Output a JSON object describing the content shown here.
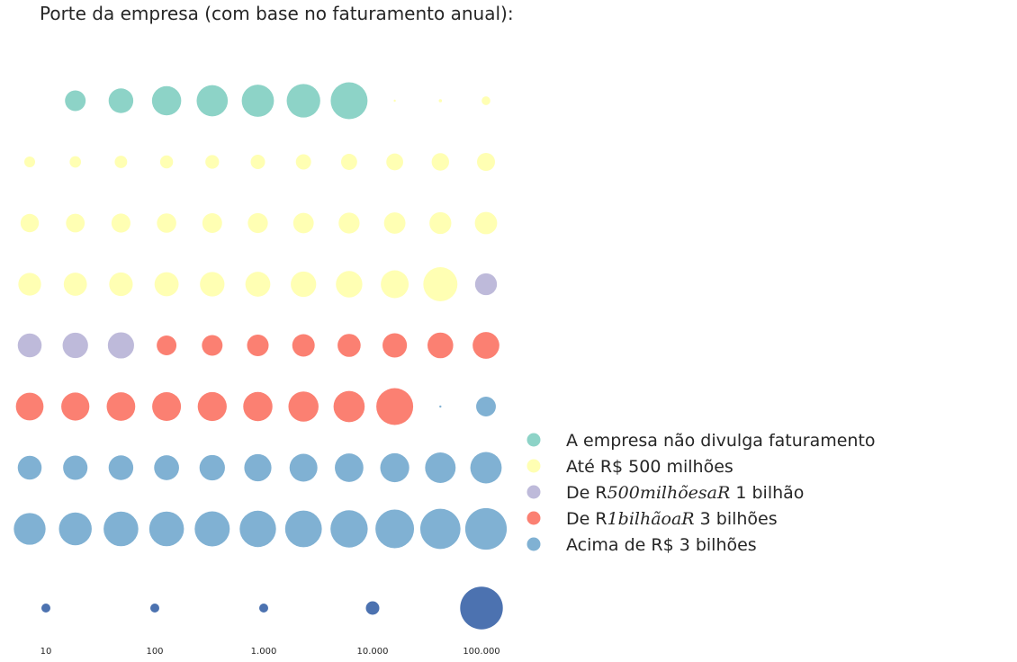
{
  "chart_data": {
    "type": "scatter",
    "title": "Porte da empresa (com base no faturamento anual):",
    "grid": false,
    "legend": {
      "placement": "right",
      "items": [
        {
          "key": "nd",
          "color": "#8dd3c7",
          "label": "A empresa não divulga faturamento"
        },
        {
          "key": "ate500",
          "color": "#ffffb3",
          "label": "Até R$ 500 milhões"
        },
        {
          "key": "500_1b",
          "color": "#bebada",
          "label_pre": "De R",
          "label_math": "500milhõesaR",
          "label_post": " 1 bilhão"
        },
        {
          "key": "1b_3b",
          "color": "#fb8072",
          "label_pre": "De R",
          "label_math": "1bilhãoaR",
          "label_post": " 3 bilhões"
        },
        {
          "key": "acima3",
          "color": "#80b1d3",
          "label": "Acima de R$ 3 bilhões"
        }
      ]
    },
    "size_legend": {
      "color": "#4c72b0",
      "values": [
        10,
        100,
        1000,
        10000,
        100000
      ],
      "labels": [
        "10",
        "100",
        "1.000",
        "10.000",
        "100.000"
      ]
    },
    "grid_columns": 11,
    "rows": [
      {
        "cells": [
          null,
          {
            "c": "nd",
            "v": 3300
          },
          {
            "c": "nd",
            "v": 4700
          },
          {
            "c": "nd",
            "v": 6600
          },
          {
            "c": "nd",
            "v": 7500
          },
          {
            "c": "nd",
            "v": 8000
          },
          {
            "c": "nd",
            "v": 8700
          },
          {
            "c": "nd",
            "v": 10500
          },
          {
            "c": "ate500",
            "v": 30
          },
          {
            "c": "ate500",
            "v": 80
          },
          {
            "c": "ate500",
            "v": 580
          }
        ]
      },
      {
        "cells": [
          {
            "c": "ate500",
            "v": 900
          },
          {
            "c": "ate500",
            "v": 1000
          },
          {
            "c": "ate500",
            "v": 1200
          },
          {
            "c": "ate500",
            "v": 1300
          },
          {
            "c": "ate500",
            "v": 1450
          },
          {
            "c": "ate500",
            "v": 1600
          },
          {
            "c": "ate500",
            "v": 1800
          },
          {
            "c": "ate500",
            "v": 2000
          },
          {
            "c": "ate500",
            "v": 2200
          },
          {
            "c": "ate500",
            "v": 2350
          },
          {
            "c": "ate500",
            "v": 2500
          }
        ]
      },
      {
        "cells": [
          {
            "c": "ate500",
            "v": 2600
          },
          {
            "c": "ate500",
            "v": 2700
          },
          {
            "c": "ate500",
            "v": 2800
          },
          {
            "c": "ate500",
            "v": 2900
          },
          {
            "c": "ate500",
            "v": 3000
          },
          {
            "c": "ate500",
            "v": 3100
          },
          {
            "c": "ate500",
            "v": 3250
          },
          {
            "c": "ate500",
            "v": 3400
          },
          {
            "c": "ate500",
            "v": 3550
          },
          {
            "c": "ate500",
            "v": 3700
          },
          {
            "c": "ate500",
            "v": 3850
          }
        ]
      },
      {
        "cells": [
          {
            "c": "ate500",
            "v": 4000
          },
          {
            "c": "ate500",
            "v": 4150
          },
          {
            "c": "ate500",
            "v": 4300
          },
          {
            "c": "ate500",
            "v": 4500
          },
          {
            "c": "ate500",
            "v": 4650
          },
          {
            "c": "ate500",
            "v": 4800
          },
          {
            "c": "ate500",
            "v": 5000
          },
          {
            "c": "ate500",
            "v": 5400
          },
          {
            "c": "ate500",
            "v": 6000
          },
          {
            "c": "ate500",
            "v": 9000
          },
          {
            "c": "500_1b",
            "v": 3700
          }
        ]
      },
      {
        "cells": [
          {
            "c": "500_1b",
            "v": 4400
          },
          {
            "c": "500_1b",
            "v": 5000
          },
          {
            "c": "500_1b",
            "v": 5300
          },
          {
            "c": "1b_3b",
            "v": 3000
          },
          {
            "c": "1b_3b",
            "v": 3300
          },
          {
            "c": "1b_3b",
            "v": 3600
          },
          {
            "c": "1b_3b",
            "v": 3900
          },
          {
            "c": "1b_3b",
            "v": 4100
          },
          {
            "c": "1b_3b",
            "v": 4600
          },
          {
            "c": "1b_3b",
            "v": 5100
          },
          {
            "c": "1b_3b",
            "v": 5500
          }
        ]
      },
      {
        "cells": [
          {
            "c": "1b_3b",
            "v": 5900
          },
          {
            "c": "1b_3b",
            "v": 6100
          },
          {
            "c": "1b_3b",
            "v": 6300
          },
          {
            "c": "1b_3b",
            "v": 6400
          },
          {
            "c": "1b_3b",
            "v": 6500
          },
          {
            "c": "1b_3b",
            "v": 6600
          },
          {
            "c": "1b_3b",
            "v": 7000
          },
          {
            "c": "1b_3b",
            "v": 7500
          },
          {
            "c": "1b_3b",
            "v": 10500
          },
          {
            "c": "acima3",
            "v": 15
          },
          {
            "c": "acima3",
            "v": 3000
          }
        ]
      },
      {
        "cells": [
          {
            "c": "acima3",
            "v": 4400
          },
          {
            "c": "acima3",
            "v": 4600
          },
          {
            "c": "acima3",
            "v": 4700
          },
          {
            "c": "acima3",
            "v": 4800
          },
          {
            "c": "acima3",
            "v": 5000
          },
          {
            "c": "acima3",
            "v": 5700
          },
          {
            "c": "acima3",
            "v": 6000
          },
          {
            "c": "acima3",
            "v": 6300
          },
          {
            "c": "acima3",
            "v": 6500
          },
          {
            "c": "acima3",
            "v": 7200
          },
          {
            "c": "acima3",
            "v": 7600
          }
        ]
      },
      {
        "cells": [
          {
            "c": "acima3",
            "v": 7800
          },
          {
            "c": "acima3",
            "v": 8300
          },
          {
            "c": "acima3",
            "v": 9300
          },
          {
            "c": "acima3",
            "v": 9300
          },
          {
            "c": "acima3",
            "v": 9500
          },
          {
            "c": "acima3",
            "v": 10200
          },
          {
            "c": "acima3",
            "v": 10400
          },
          {
            "c": "acima3",
            "v": 10700
          },
          {
            "c": "acima3",
            "v": 11500
          },
          {
            "c": "acima3",
            "v": 12500
          },
          {
            "c": "acima3",
            "v": 13300
          }
        ]
      }
    ]
  }
}
